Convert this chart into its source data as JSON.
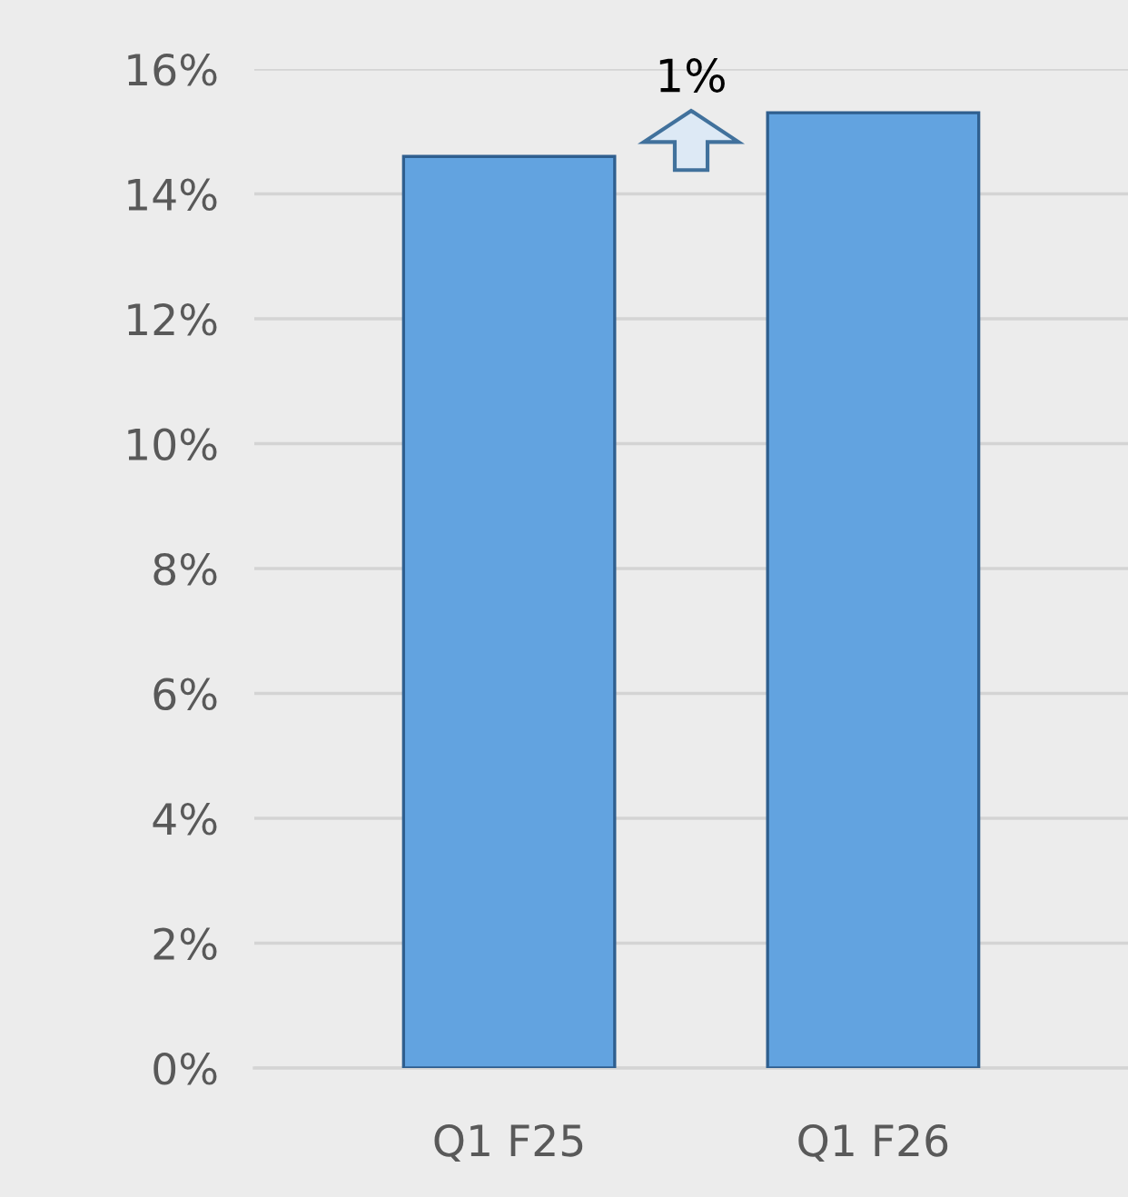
{
  "chart_data": {
    "type": "bar",
    "categories": [
      "Q1 F25",
      "Q1 F26"
    ],
    "values": [
      14.6,
      15.3
    ],
    "color": "#62a3e0",
    "ylim": [
      0,
      16
    ],
    "yticks": [
      {
        "value": 0,
        "label": "0%"
      },
      {
        "value": 2,
        "label": "2%"
      },
      {
        "value": 4,
        "label": "4%"
      },
      {
        "value": 6,
        "label": "6%"
      },
      {
        "value": 8,
        "label": "8%"
      },
      {
        "value": 10,
        "label": "10%"
      },
      {
        "value": 12,
        "label": "12%"
      },
      {
        "value": 14,
        "label": "14%"
      },
      {
        "value": 16,
        "label": "16%"
      }
    ],
    "grid": "y",
    "annotations": [
      "1%"
    ]
  }
}
